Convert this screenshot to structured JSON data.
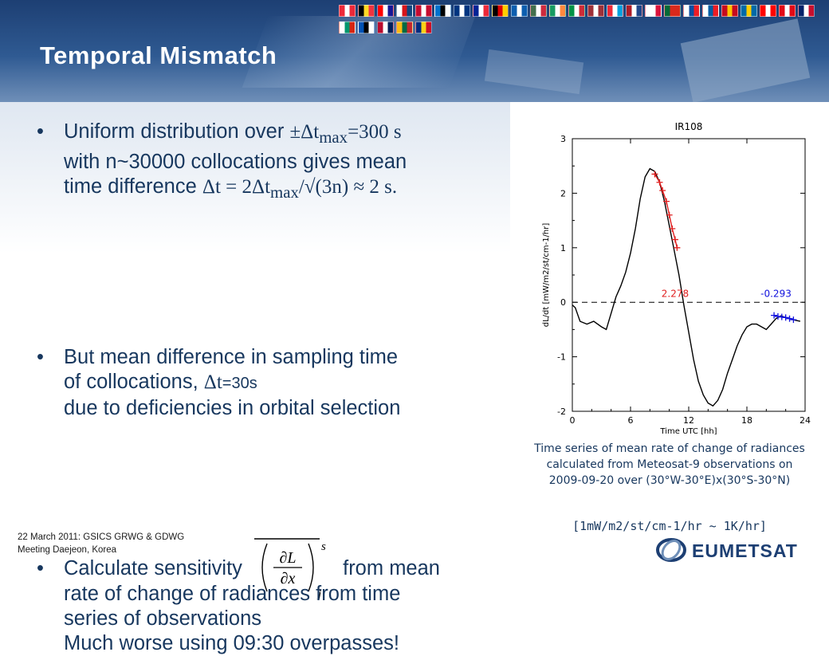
{
  "slide": {
    "title": "Temporal Mismatch",
    "bullets": [
      {
        "lead": "Uniform distribution over ",
        "eq1": "±Δt",
        "eq1_sub": "max",
        "eq1_tail": "=300 s",
        "line2": "with n~30000 collocations gives mean",
        "line3a": "time difference ",
        "eq2": "Δt = 2Δt",
        "eq2_sub": "max",
        "eq2_tail": "/√(3n) ≈ 2 s."
      },
      {
        "line1": "But mean difference in sampling time",
        "line2a": "of collocations, ",
        "eq": "Δt",
        "eq_tail": "=30s",
        "line3": "due to deficiencies in orbital selection"
      },
      {
        "line1a": "Calculate sensitivity",
        "line1b": "from mean",
        "line2": "rate of change of radiances from time",
        "line3": "series of observations",
        "line4": "Much worse using 09:30 overpasses!"
      }
    ],
    "sensitivity_symbol": {
      "numerator": "∂L",
      "denominator": "∂x",
      "superscript": "s",
      "subscript": "j"
    }
  },
  "caption": "Time series of mean rate of change of radiances calculated from Meteosat-9 observations on 2009-09-20 over (30°W-30°E)x(30°S-30°N)",
  "unit_note": "[1mW/m2/st/cm-1/hr ~ 1K/hr]",
  "footer": {
    "line1": "22 March 2011: GSICS GRWG & GDWG",
    "line2": "Meeting Daejeon, Korea"
  },
  "logo": {
    "text": "EUMETSAT"
  },
  "colors": {
    "title_text": "#ffffff",
    "body_text": "#17375e",
    "header_dark": "#1d3f73",
    "series_red": "#e02020",
    "series_blue": "#1010dd"
  },
  "flags": [
    [
      "#ed2939",
      "#ffffff",
      "#ed2939"
    ],
    [
      "#000000",
      "#fdda24",
      "#ef3340"
    ],
    [
      "#ff0000",
      "#ffffff",
      "#171796"
    ],
    [
      "#ffffff",
      "#d7141a",
      "#11457e"
    ],
    [
      "#c60c30",
      "#ffffff",
      "#c60c30"
    ],
    [
      "#0072ce",
      "#000000",
      "#ffffff"
    ],
    [
      "#003580",
      "#ffffff",
      "#003580"
    ],
    [
      "#002395",
      "#ffffff",
      "#ed2939"
    ],
    [
      "#000000",
      "#dd0000",
      "#ffce00"
    ],
    [
      "#0d5eaf",
      "#ffffff",
      "#0d5eaf"
    ],
    [
      "#436f4d",
      "#ffffff",
      "#cd2a3e"
    ],
    [
      "#169b62",
      "#ffffff",
      "#ff883e"
    ],
    [
      "#009246",
      "#ffffff",
      "#ce2b37"
    ],
    [
      "#9e3039",
      "#ffffff",
      "#9e3039"
    ],
    [
      "#ed2939",
      "#ffffff",
      "#00a1de"
    ],
    [
      "#ae1c28",
      "#ffffff",
      "#21468b"
    ],
    [
      "#ffffff",
      "#ffffff",
      "#dc143c"
    ],
    [
      "#046a38",
      "#da291c",
      "#da291c"
    ],
    [
      "#ffffff",
      "#0b4ea2",
      "#ee1c25"
    ],
    [
      "#ffffff",
      "#005da4",
      "#ed1c24"
    ],
    [
      "#c60b1e",
      "#ffc400",
      "#c60b1e"
    ],
    [
      "#006aa7",
      "#fecc00",
      "#006aa7"
    ],
    [
      "#ff0000",
      "#ffffff",
      "#ff0000"
    ],
    [
      "#e30a17",
      "#ffffff",
      "#e30a17"
    ],
    [
      "#012169",
      "#ffffff",
      "#c8102e"
    ],
    [
      "#ffffff",
      "#00966e",
      "#d62612"
    ],
    [
      "#0052b4",
      "#000000",
      "#ffffff"
    ],
    [
      "#ba0c2f",
      "#ffffff",
      "#00205b"
    ],
    [
      "#fdb913",
      "#006a44",
      "#c1272d"
    ],
    [
      "#002b7f",
      "#fcd116",
      "#ce1126"
    ]
  ],
  "chart_data": {
    "type": "line",
    "title": "IR108",
    "xlabel": "Time UTC [hh]",
    "ylabel": "dL/dt [mW/m2/st/cm-1/hr]",
    "xlim": [
      0,
      24
    ],
    "ylim": [
      -2,
      3
    ],
    "xticks": [
      0,
      6,
      12,
      18,
      24
    ],
    "yticks": [
      -2,
      -1,
      0,
      1,
      2,
      3
    ],
    "reference_line": {
      "y": 0,
      "style": "dashed"
    },
    "series": [
      {
        "color": "#000000",
        "style": "line",
        "x": [
          0.0,
          0.3,
          0.8,
          1.5,
          2.2,
          3.0,
          3.5,
          4.0,
          4.5,
          5.0,
          5.5,
          6.0,
          6.5,
          7.0,
          7.5,
          8.0,
          8.5,
          9.0,
          9.5,
          10.0,
          10.5,
          11.0,
          11.5,
          12.0,
          12.5,
          13.0,
          13.5,
          14.0,
          14.5,
          15.0,
          15.5,
          16.0,
          16.5,
          17.0,
          17.5,
          18.0,
          18.5,
          19.0,
          19.5,
          20.0,
          20.5,
          21.0,
          21.5,
          22.0,
          22.5,
          23.0,
          23.5
        ],
        "y": [
          -0.05,
          -0.1,
          -0.35,
          -0.4,
          -0.35,
          -0.45,
          -0.5,
          -0.2,
          0.1,
          0.3,
          0.55,
          0.9,
          1.35,
          1.9,
          2.3,
          2.45,
          2.4,
          2.2,
          1.85,
          1.4,
          0.95,
          0.5,
          -0.05,
          -0.55,
          -1.05,
          -1.45,
          -1.7,
          -1.85,
          -1.9,
          -1.8,
          -1.6,
          -1.3,
          -1.05,
          -0.8,
          -0.6,
          -0.45,
          -0.4,
          -0.4,
          -0.45,
          -0.5,
          -0.4,
          -0.3,
          -0.25,
          -0.28,
          -0.3,
          -0.33,
          -0.35
        ]
      },
      {
        "color": "#e02020",
        "style": "line+markers",
        "x": [
          8.5,
          9.0,
          9.3,
          9.7,
          10.0,
          10.3,
          10.6,
          10.8
        ],
        "y": [
          2.35,
          2.2,
          2.05,
          1.85,
          1.6,
          1.35,
          1.15,
          1.0
        ]
      },
      {
        "color": "#1010dd",
        "style": "line+markers",
        "x": [
          20.8,
          21.2,
          21.6,
          22.0,
          22.4,
          22.8
        ],
        "y": [
          -0.24,
          -0.26,
          -0.27,
          -0.28,
          -0.3,
          -0.32
        ]
      }
    ],
    "annotations": [
      {
        "text": "2.278",
        "x": 10.6,
        "y": 0.1,
        "color": "#e02020"
      },
      {
        "text": "-0.293",
        "x": 21.0,
        "y": 0.1,
        "color": "#1010dd"
      }
    ]
  }
}
